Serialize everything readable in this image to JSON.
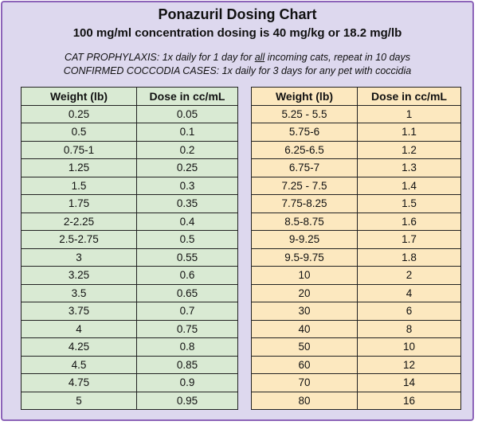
{
  "header": {
    "title": "Ponazuril Dosing Chart",
    "subtitle": "100 mg/ml concentration dosing is 40 mg/kg or 18.2 mg/lb",
    "note1_pre": "CAT PROPHYLAXIS: 1x daily for 1 day for ",
    "note1_emph": "all",
    "note1_post": " incoming cats, repeat in 10 days",
    "note2": "CONFIRMED COCCODIA CASES: 1x daily for 3 days for any pet with coccidia"
  },
  "colors": {
    "frame_border": "#8c63b8",
    "frame_bg": "#ddd8ee",
    "left_table_bg": "#d9ead3",
    "right_table_bg": "#fce8bf"
  },
  "left_table": {
    "headers": [
      "Weight (lb)",
      "Dose in cc/mL"
    ],
    "rows": [
      [
        "0.25",
        "0.05"
      ],
      [
        "0.5",
        "0.1"
      ],
      [
        "0.75-1",
        "0.2"
      ],
      [
        "1.25",
        "0.25"
      ],
      [
        "1.5",
        "0.3"
      ],
      [
        "1.75",
        "0.35"
      ],
      [
        "2-2.25",
        "0.4"
      ],
      [
        "2.5-2.75",
        "0.5"
      ],
      [
        "3",
        "0.55"
      ],
      [
        "3.25",
        "0.6"
      ],
      [
        "3.5",
        "0.65"
      ],
      [
        "3.75",
        "0.7"
      ],
      [
        "4",
        "0.75"
      ],
      [
        "4.25",
        "0.8"
      ],
      [
        "4.5",
        "0.85"
      ],
      [
        "4.75",
        "0.9"
      ],
      [
        "5",
        "0.95"
      ]
    ]
  },
  "right_table": {
    "headers": [
      "Weight (lb)",
      "Dose in cc/mL"
    ],
    "rows": [
      [
        "5.25 - 5.5",
        "1"
      ],
      [
        "5.75-6",
        "1.1"
      ],
      [
        "6.25-6.5",
        "1.2"
      ],
      [
        "6.75-7",
        "1.3"
      ],
      [
        "7.25 - 7.5",
        "1.4"
      ],
      [
        "7.75-8.25",
        "1.5"
      ],
      [
        "8.5-8.75",
        "1.6"
      ],
      [
        "9-9.25",
        "1.7"
      ],
      [
        "9.5-9.75",
        "1.8"
      ],
      [
        "10",
        "2"
      ],
      [
        "20",
        "4"
      ],
      [
        "30",
        "6"
      ],
      [
        "40",
        "8"
      ],
      [
        "50",
        "10"
      ],
      [
        "60",
        "12"
      ],
      [
        "70",
        "14"
      ],
      [
        "80",
        "16"
      ]
    ]
  }
}
